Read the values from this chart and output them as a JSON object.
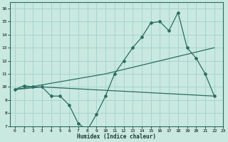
{
  "xlabel": "Humidex (Indice chaleur)",
  "background_color": "#c8e8e0",
  "grid_color": "#a8d4cc",
  "line_color": "#2a6e60",
  "xlim": [
    -0.5,
    23
  ],
  "ylim": [
    7,
    16.5
  ],
  "xticks": [
    0,
    1,
    2,
    3,
    4,
    5,
    6,
    7,
    8,
    9,
    10,
    11,
    12,
    13,
    14,
    15,
    16,
    17,
    18,
    19,
    20,
    21,
    22,
    23
  ],
  "yticks": [
    7,
    8,
    9,
    10,
    11,
    12,
    13,
    14,
    15,
    16
  ],
  "line1_x": [
    0,
    1,
    2,
    3,
    4,
    5,
    6,
    7,
    8,
    9,
    10,
    11,
    12,
    13,
    14,
    15,
    16,
    17,
    18,
    19,
    20,
    21,
    22
  ],
  "line1_y": [
    9.8,
    10.1,
    10.0,
    10.0,
    9.3,
    9.3,
    8.6,
    7.2,
    6.7,
    7.9,
    9.3,
    11.0,
    12.0,
    13.0,
    13.8,
    14.9,
    15.0,
    14.3,
    15.7,
    13.0,
    12.2,
    11.0,
    9.3
  ],
  "line2_x": [
    0,
    3,
    22
  ],
  "line2_y": [
    9.8,
    10.0,
    9.3
  ],
  "line3_x": [
    0,
    10,
    22
  ],
  "line3_y": [
    9.8,
    11.0,
    13.0
  ]
}
